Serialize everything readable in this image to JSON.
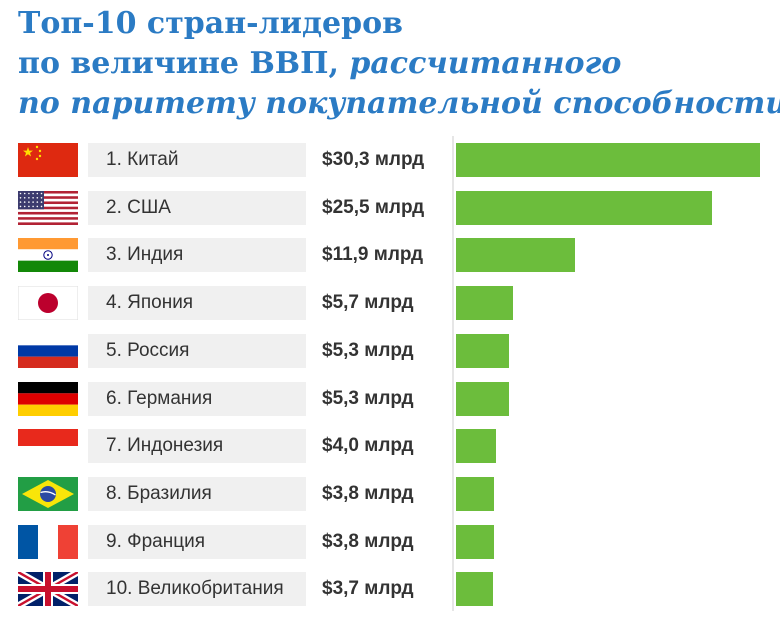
{
  "title": {
    "line1": "Топ-10 стран-лидеров",
    "line2_bold": "по величине ВВП,",
    "line2_italic": " рассчитанного",
    "line3": "по паритету покупательной способности"
  },
  "colors": {
    "title": "#2b7bc4",
    "bar": "#6cbd3c",
    "label_bg": "#f0f0f0"
  },
  "chart_data": {
    "type": "bar",
    "orientation": "horizontal",
    "categories": [
      "1. Китай",
      "2. США",
      "3. Индия",
      "4. Япония",
      "5. Россия",
      "6. Германия",
      "7. Индонезия",
      "8. Бразилия",
      "9. Франция",
      "10. Великобритания"
    ],
    "values": [
      30.3,
      25.5,
      11.9,
      5.7,
      5.3,
      5.3,
      4.0,
      3.8,
      3.8,
      3.7
    ],
    "value_labels": [
      "$30,3 млрд",
      "$25,5 млрд",
      "$11,9 млрд",
      "$5,7 млрд",
      "$5,3 млрд",
      "$5,3 млрд",
      "$4,0 млрд",
      "$3,8 млрд",
      "$3,8 млрд",
      "$3,7 млрд"
    ],
    "flags": [
      "china-flag-icon",
      "usa-flag-icon",
      "india-flag-icon",
      "japan-flag-icon",
      "russia-flag-icon",
      "germany-flag-icon",
      "indonesia-flag-icon",
      "brazil-flag-icon",
      "france-flag-icon",
      "uk-flag-icon"
    ],
    "xlim": [
      0,
      30.3
    ],
    "grid": false
  }
}
